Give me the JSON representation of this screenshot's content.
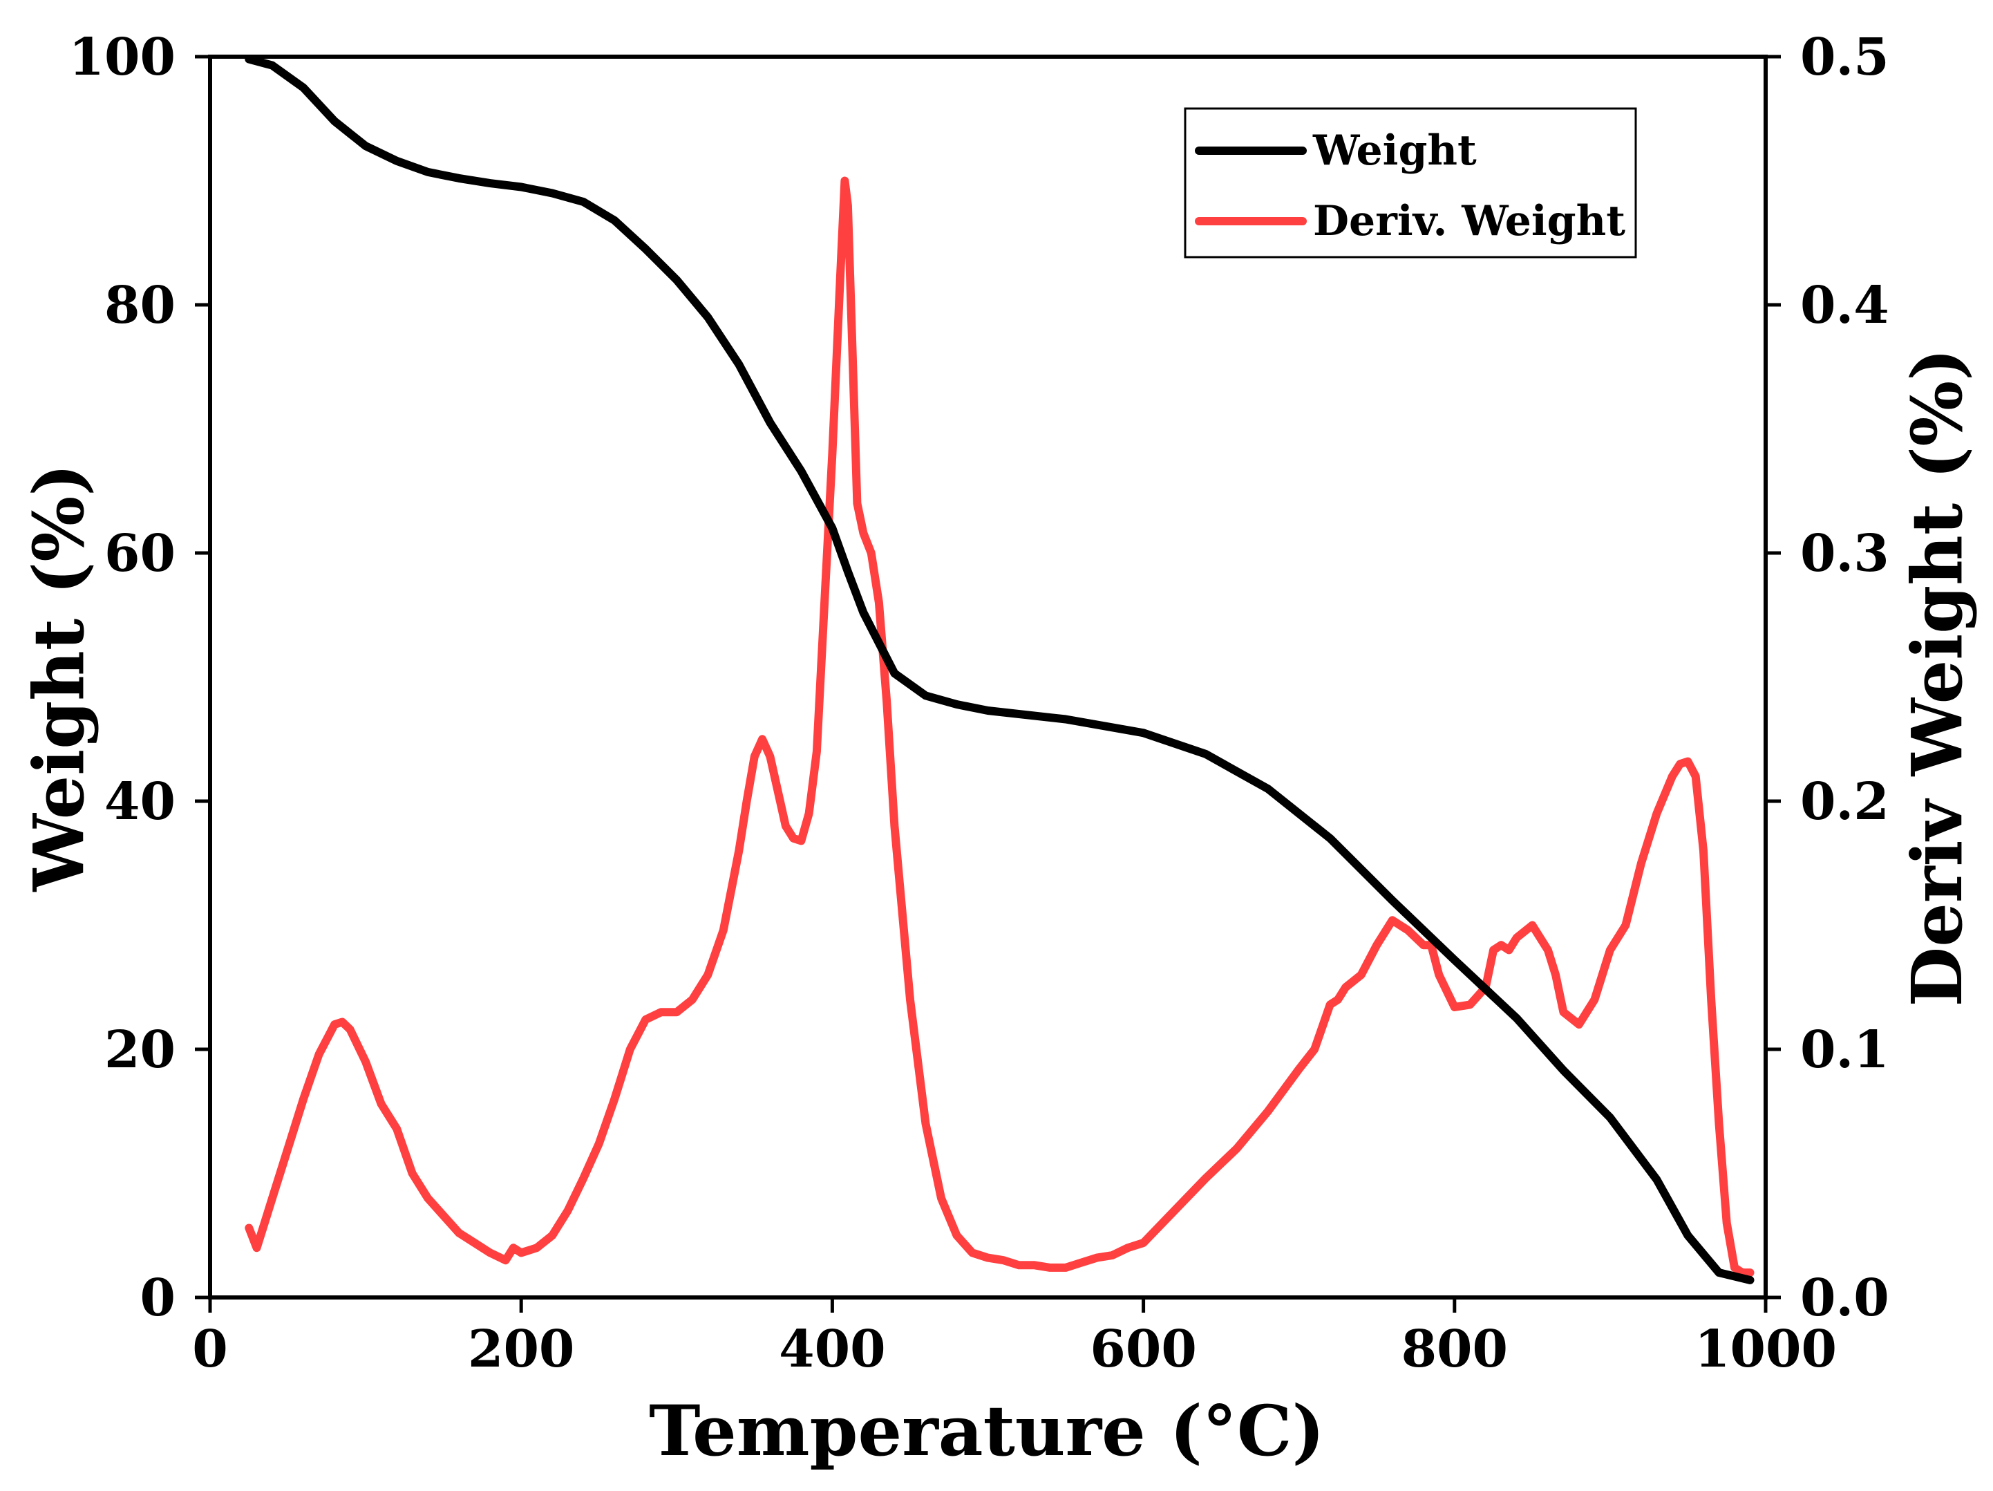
{
  "chart_data": {
    "type": "line",
    "title": "",
    "xlabel": "Temperature (°C)",
    "ylabel": "Weight (%)",
    "y2label": "Deriv Weight (%)",
    "xlim": [
      0,
      1000
    ],
    "ylim": [
      0,
      100
    ],
    "y2lim": [
      0.0,
      0.5
    ],
    "xticks": [
      "0",
      "200",
      "400",
      "600",
      "800",
      "1000"
    ],
    "yticks": [
      "0",
      "20",
      "40",
      "60",
      "80",
      "100"
    ],
    "y2ticks": [
      "0.0",
      "0.1",
      "0.2",
      "0.3",
      "0.4",
      "0.5"
    ],
    "grid": false,
    "legend_position": "top-right",
    "colors": {
      "weight": "#000000",
      "deriv": "#ff4040"
    },
    "series": [
      {
        "name": "Weight",
        "axis": "left",
        "color": "#000000",
        "x": [
          25,
          40,
          60,
          80,
          100,
          120,
          140,
          160,
          180,
          200,
          220,
          240,
          260,
          280,
          300,
          320,
          340,
          360,
          380,
          400,
          410,
          420,
          440,
          460,
          480,
          500,
          550,
          600,
          640,
          680,
          720,
          760,
          800,
          840,
          870,
          900,
          930,
          950,
          970,
          990
        ],
        "values": [
          99.8,
          99.3,
          97.5,
          94.8,
          92.8,
          91.6,
          90.7,
          90.2,
          89.8,
          89.5,
          89.0,
          88.3,
          86.8,
          84.5,
          82.0,
          79.0,
          75.2,
          70.5,
          66.6,
          62.0,
          58.5,
          55.2,
          50.3,
          48.5,
          47.8,
          47.3,
          46.6,
          45.5,
          43.8,
          41.0,
          37.0,
          32.0,
          27.2,
          22.5,
          18.3,
          14.5,
          9.5,
          5.0,
          2.0,
          1.4
        ]
      },
      {
        "name": "Deriv. Weight",
        "axis": "right",
        "color": "#ff4040",
        "x": [
          25,
          30,
          35,
          40,
          50,
          60,
          70,
          80,
          85,
          90,
          100,
          110,
          120,
          130,
          140,
          150,
          160,
          170,
          180,
          190,
          195,
          200,
          210,
          220,
          230,
          240,
          250,
          260,
          270,
          280,
          290,
          300,
          310,
          320,
          330,
          340,
          345,
          350,
          355,
          360,
          370,
          375,
          380,
          385,
          390,
          395,
          400,
          405,
          408,
          410,
          413,
          416,
          420,
          425,
          430,
          435,
          440,
          450,
          460,
          470,
          480,
          490,
          500,
          510,
          520,
          530,
          540,
          550,
          560,
          570,
          580,
          590,
          600,
          620,
          640,
          660,
          680,
          700,
          710,
          720,
          725,
          730,
          740,
          750,
          760,
          770,
          780,
          785,
          790,
          800,
          810,
          820,
          825,
          830,
          835,
          840,
          850,
          860,
          865,
          870,
          880,
          890,
          900,
          910,
          920,
          930,
          940,
          945,
          950,
          955,
          960,
          965,
          970,
          975,
          980,
          985,
          990
        ],
        "values": [
          0.028,
          0.02,
          0.03,
          0.04,
          0.06,
          0.08,
          0.098,
          0.11,
          0.111,
          0.108,
          0.095,
          0.078,
          0.068,
          0.05,
          0.04,
          0.033,
          0.026,
          0.022,
          0.018,
          0.015,
          0.02,
          0.018,
          0.02,
          0.025,
          0.035,
          0.048,
          0.062,
          0.08,
          0.1,
          0.112,
          0.115,
          0.115,
          0.12,
          0.13,
          0.148,
          0.18,
          0.2,
          0.218,
          0.225,
          0.218,
          0.19,
          0.185,
          0.184,
          0.195,
          0.22,
          0.28,
          0.34,
          0.41,
          0.45,
          0.44,
          0.38,
          0.32,
          0.308,
          0.3,
          0.28,
          0.24,
          0.19,
          0.12,
          0.07,
          0.04,
          0.025,
          0.018,
          0.016,
          0.015,
          0.013,
          0.013,
          0.012,
          0.012,
          0.014,
          0.016,
          0.017,
          0.02,
          0.022,
          0.035,
          0.048,
          0.06,
          0.075,
          0.092,
          0.1,
          0.118,
          0.12,
          0.125,
          0.13,
          0.142,
          0.152,
          0.148,
          0.142,
          0.142,
          0.13,
          0.117,
          0.118,
          0.125,
          0.14,
          0.142,
          0.14,
          0.145,
          0.15,
          0.14,
          0.13,
          0.115,
          0.11,
          0.12,
          0.14,
          0.15,
          0.175,
          0.195,
          0.21,
          0.215,
          0.216,
          0.21,
          0.18,
          0.12,
          0.07,
          0.03,
          0.012,
          0.01,
          0.01
        ]
      }
    ]
  }
}
